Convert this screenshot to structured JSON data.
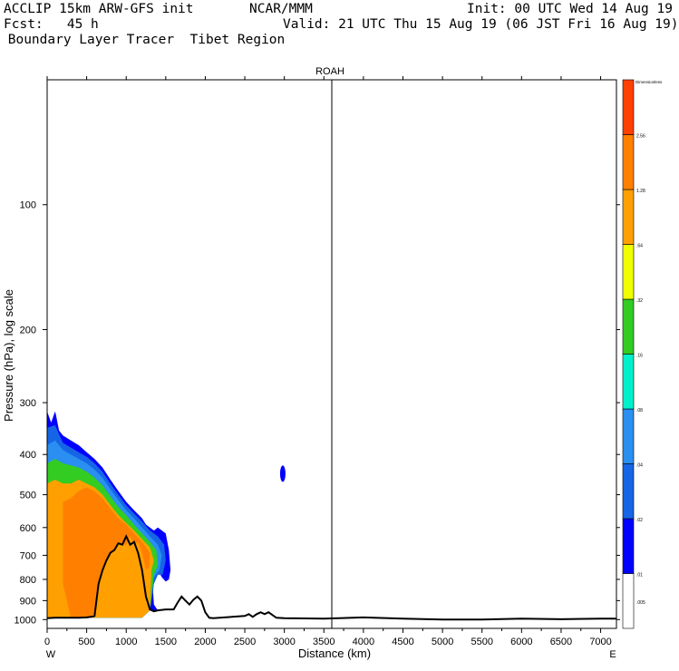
{
  "header": {
    "line1_left": "ACCLIP 15km ARW-GFS init",
    "line1_mid": "NCAR/MMM",
    "line1_right": "Init: 00 UTC Wed 14 Aug 19",
    "line2_left": "Fcst:   45 h",
    "line2_right": "Valid: 21 UTC Thu 15 Aug 19 (06 JST Fri 16 Aug 19)",
    "line3_left": " Boundary Layer Tracer  Tibet Region"
  },
  "chart_data": {
    "type": "cross-section-contour",
    "title": "ROAH",
    "xlabel": "Distance (km)",
    "ylabel": "Pressure (hPa), log scale",
    "xlim": [
      0,
      7200
    ],
    "ylim": [
      1050,
      50
    ],
    "y_log_scale": true,
    "x_ticks": [
      0,
      500,
      1000,
      1500,
      2000,
      2500,
      3000,
      3500,
      4000,
      4500,
      5000,
      5500,
      6000,
      6500,
      7000
    ],
    "y_ticks": [
      100,
      200,
      300,
      400,
      500,
      600,
      700,
      800,
      900,
      1000
    ],
    "x_endpoints": {
      "left": "W",
      "right": "E"
    },
    "vertical_marker_km": 3600,
    "colorbar": {
      "title": "Dimensionless",
      "levels": [
        ".005",
        ".01",
        ".02",
        ".04",
        ".08",
        ".16",
        ".32",
        ".64",
        "1.28",
        "2.56",
        ""
      ],
      "colors": [
        "#ffffff",
        "#0000ff",
        "#1565e6",
        "#2a8ff0",
        "#00f0cc",
        "#33cc22",
        "#f0ff00",
        "#ffa000",
        "#ff8000",
        "#ff4000"
      ]
    },
    "terrain": {
      "x": [
        0,
        100,
        200,
        300,
        400,
        500,
        550,
        600,
        650,
        700,
        750,
        800,
        850,
        900,
        950,
        1000,
        1050,
        1100,
        1150,
        1200,
        1250,
        1300,
        1350,
        1400,
        1500,
        1600,
        1650,
        1700,
        1750,
        1800,
        1850,
        1900,
        1950,
        2000,
        2050,
        2100,
        2500,
        2550,
        2600,
        2650,
        2700,
        2750,
        2800,
        2850,
        2900,
        3000,
        3500,
        4000,
        4500,
        5000,
        5500,
        6000,
        6500,
        7000,
        7200
      ],
      "p": [
        992,
        990,
        990,
        990,
        990,
        988,
        985,
        980,
        820,
        760,
        720,
        690,
        680,
        655,
        660,
        630,
        660,
        650,
        690,
        760,
        880,
        945,
        955,
        950,
        945,
        945,
        910,
        880,
        900,
        920,
        895,
        880,
        900,
        960,
        990,
        992,
        980,
        970,
        985,
        970,
        960,
        970,
        960,
        975,
        990,
        992,
        995,
        988,
        995,
        1000,
        1000,
        995,
        998,
        995,
        995
      ]
    },
    "tracer_fields": [
      {
        "level": ".01",
        "x": [
          0,
          50,
          100,
          110,
          150,
          200,
          300,
          400,
          500,
          600,
          700,
          800,
          900,
          1000,
          1100,
          1200,
          1250,
          1300,
          1350,
          1400,
          1500,
          1540,
          1560,
          1540,
          1500,
          1450,
          1400,
          1380,
          1350,
          1340,
          1350,
          1400,
          1300,
          1200,
          0
        ],
        "p": [
          315,
          335,
          315,
          320,
          350,
          360,
          370,
          380,
          395,
          410,
          430,
          460,
          490,
          520,
          545,
          570,
          590,
          600,
          610,
          600,
          620,
          680,
          760,
          800,
          810,
          790,
          760,
          760,
          800,
          860,
          920,
          950,
          950,
          990,
          990
        ]
      },
      {
        "level": ".02",
        "x": [
          0,
          100,
          200,
          300,
          400,
          500,
          600,
          700,
          800,
          900,
          1000,
          1100,
          1200,
          1300,
          1400,
          1480,
          1500,
          1460,
          1400,
          1350,
          1300,
          1200,
          0
        ],
        "p": [
          345,
          340,
          375,
          385,
          395,
          405,
          420,
          440,
          470,
          500,
          530,
          555,
          580,
          610,
          630,
          660,
          720,
          780,
          780,
          820,
          950,
          990,
          990
        ]
      },
      {
        "level": ".04",
        "x": [
          0,
          100,
          200,
          300,
          400,
          500,
          600,
          700,
          800,
          900,
          1000,
          1100,
          1200,
          1300,
          1400,
          1450,
          1420,
          1350,
          1300,
          1200,
          0
        ],
        "p": [
          380,
          370,
          390,
          400,
          410,
          420,
          435,
          455,
          485,
          515,
          545,
          570,
          600,
          630,
          660,
          700,
          760,
          790,
          950,
          990,
          990
        ]
      },
      {
        "level": ".16",
        "x": [
          0,
          100,
          200,
          300,
          400,
          500,
          600,
          700,
          800,
          900,
          1000,
          1100,
          1200,
          1300,
          1380,
          1400,
          1350,
          1300,
          1200,
          0
        ],
        "p": [
          420,
          410,
          420,
          425,
          430,
          440,
          455,
          475,
          505,
          535,
          560,
          590,
          620,
          650,
          680,
          740,
          780,
          950,
          990,
          990
        ]
      },
      {
        "level": ".64",
        "x": [
          0,
          100,
          200,
          300,
          400,
          500,
          600,
          700,
          800,
          900,
          1000,
          1100,
          1200,
          1300,
          1350,
          1320,
          1300,
          1200,
          0
        ],
        "p": [
          470,
          460,
          470,
          470,
          460,
          470,
          480,
          500,
          530,
          560,
          585,
          610,
          640,
          670,
          720,
          760,
          950,
          990,
          990
        ]
      },
      {
        "level": "1.28",
        "x": [
          200,
          300,
          400,
          500,
          600,
          700,
          800,
          900,
          1000,
          1100,
          1200,
          1300,
          1290,
          1250,
          1200,
          1150,
          1100,
          1050,
          1000,
          950,
          900,
          850,
          800,
          750,
          700,
          650,
          600,
          550,
          500,
          450,
          400,
          300,
          200
        ],
        "p": [
          520,
          510,
          490,
          480,
          490,
          510,
          540,
          570,
          590,
          620,
          650,
          690,
          750,
          760,
          690,
          650,
          660,
          630,
          660,
          660,
          655,
          680,
          690,
          720,
          760,
          820,
          985,
          988,
          990,
          990,
          990,
          990,
          820
        ]
      }
    ],
    "isolated_blob": {
      "x": 2980,
      "p": 445,
      "level": ".01"
    }
  }
}
